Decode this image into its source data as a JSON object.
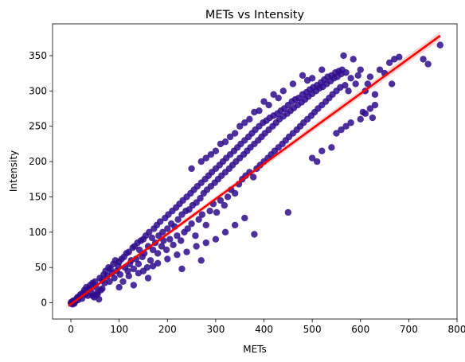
{
  "chart_data": {
    "type": "scatter",
    "title": "METs vs Intensity",
    "xlabel": "METs",
    "ylabel": "Intensity",
    "xlim": [
      -38,
      800
    ],
    "ylim": [
      -23,
      395
    ],
    "xticks": [
      0,
      100,
      200,
      300,
      400,
      500,
      600,
      700,
      800
    ],
    "yticks": [
      0,
      50,
      100,
      150,
      200,
      250,
      300,
      350
    ],
    "grid": false,
    "legend": "none",
    "colors": {
      "points": "#2e0a8c",
      "fit_line": "#ff0000",
      "ci_band": "#ffb3b3"
    },
    "regression": {
      "slope": 0.497,
      "intercept": -2,
      "x_range": [
        -5,
        765
      ]
    },
    "points": [
      [
        0,
        0
      ],
      [
        2,
        0
      ],
      [
        4,
        -1
      ],
      [
        1,
        1
      ],
      [
        6,
        2
      ],
      [
        8,
        1
      ],
      [
        3,
        -2
      ],
      [
        5,
        3
      ],
      [
        7,
        -1
      ],
      [
        10,
        3
      ],
      [
        12,
        6
      ],
      [
        15,
        4
      ],
      [
        14,
        8
      ],
      [
        18,
        9
      ],
      [
        20,
        12
      ],
      [
        23,
        6
      ],
      [
        25,
        14
      ],
      [
        28,
        18
      ],
      [
        30,
        12
      ],
      [
        32,
        22
      ],
      [
        35,
        10
      ],
      [
        38,
        20
      ],
      [
        40,
        25
      ],
      [
        42,
        15
      ],
      [
        45,
        28
      ],
      [
        48,
        8
      ],
      [
        50,
        30
      ],
      [
        52,
        22
      ],
      [
        55,
        12
      ],
      [
        58,
        5
      ],
      [
        60,
        35
      ],
      [
        62,
        18
      ],
      [
        65,
        32
      ],
      [
        68,
        40
      ],
      [
        70,
        28
      ],
      [
        72,
        45
      ],
      [
        75,
        38
      ],
      [
        78,
        50
      ],
      [
        80,
        30
      ],
      [
        82,
        48
      ],
      [
        85,
        42
      ],
      [
        88,
        55
      ],
      [
        90,
        35
      ],
      [
        92,
        60
      ],
      [
        95,
        45
      ],
      [
        98,
        52
      ],
      [
        100,
        58
      ],
      [
        102,
        40
      ],
      [
        105,
        62
      ],
      [
        108,
        30
      ],
      [
        110,
        65
      ],
      [
        112,
        50
      ],
      [
        115,
        70
      ],
      [
        118,
        45
      ],
      [
        120,
        72
      ],
      [
        122,
        55
      ],
      [
        125,
        60
      ],
      [
        128,
        78
      ],
      [
        130,
        48
      ],
      [
        132,
        80
      ],
      [
        135,
        62
      ],
      [
        138,
        85
      ],
      [
        140,
        55
      ],
      [
        142,
        75
      ],
      [
        145,
        88
      ],
      [
        148,
        65
      ],
      [
        150,
        90
      ],
      [
        152,
        70
      ],
      [
        155,
        95
      ],
      [
        158,
        50
      ],
      [
        160,
        80
      ],
      [
        162,
        100
      ],
      [
        165,
        60
      ],
      [
        168,
        92
      ],
      [
        170,
        75
      ],
      [
        172,
        105
      ],
      [
        175,
        85
      ],
      [
        178,
        110
      ],
      [
        180,
        70
      ],
      [
        182,
        95
      ],
      [
        185,
        115
      ],
      [
        188,
        80
      ],
      [
        190,
        100
      ],
      [
        192,
        88
      ],
      [
        195,
        120
      ],
      [
        198,
        75
      ],
      [
        200,
        105
      ],
      [
        202,
        125
      ],
      [
        205,
        90
      ],
      [
        208,
        112
      ],
      [
        210,
        130
      ],
      [
        212,
        82
      ],
      [
        215,
        108
      ],
      [
        218,
        135
      ],
      [
        220,
        95
      ],
      [
        222,
        118
      ],
      [
        225,
        140
      ],
      [
        228,
        88
      ],
      [
        230,
        125
      ],
      [
        232,
        145
      ],
      [
        235,
        100
      ],
      [
        238,
        130
      ],
      [
        240,
        150
      ],
      [
        242,
        105
      ],
      [
        245,
        132
      ],
      [
        248,
        155
      ],
      [
        250,
        112
      ],
      [
        252,
        138
      ],
      [
        255,
        160
      ],
      [
        258,
        95
      ],
      [
        260,
        142
      ],
      [
        262,
        165
      ],
      [
        265,
        118
      ],
      [
        268,
        148
      ],
      [
        270,
        170
      ],
      [
        272,
        125
      ],
      [
        275,
        155
      ],
      [
        278,
        175
      ],
      [
        280,
        110
      ],
      [
        282,
        160
      ],
      [
        285,
        180
      ],
      [
        288,
        130
      ],
      [
        290,
        165
      ],
      [
        292,
        185
      ],
      [
        295,
        140
      ],
      [
        298,
        170
      ],
      [
        300,
        190
      ],
      [
        302,
        128
      ],
      [
        305,
        175
      ],
      [
        308,
        195
      ],
      [
        310,
        145
      ],
      [
        312,
        180
      ],
      [
        315,
        200
      ],
      [
        318,
        138
      ],
      [
        320,
        185
      ],
      [
        322,
        205
      ],
      [
        325,
        150
      ],
      [
        328,
        190
      ],
      [
        330,
        210
      ],
      [
        332,
        160
      ],
      [
        335,
        195
      ],
      [
        338,
        215
      ],
      [
        340,
        155
      ],
      [
        342,
        200
      ],
      [
        345,
        220
      ],
      [
        348,
        168
      ],
      [
        350,
        205
      ],
      [
        352,
        225
      ],
      [
        355,
        175
      ],
      [
        358,
        210
      ],
      [
        360,
        230
      ],
      [
        362,
        180
      ],
      [
        365,
        215
      ],
      [
        368,
        235
      ],
      [
        370,
        185
      ],
      [
        372,
        220
      ],
      [
        375,
        240
      ],
      [
        378,
        178
      ],
      [
        380,
        225
      ],
      [
        382,
        245
      ],
      [
        385,
        190
      ],
      [
        388,
        230
      ],
      [
        390,
        250
      ],
      [
        392,
        195
      ],
      [
        395,
        235
      ],
      [
        398,
        255
      ],
      [
        400,
        200
      ],
      [
        402,
        240
      ],
      [
        405,
        258
      ],
      [
        408,
        205
      ],
      [
        410,
        245
      ],
      [
        412,
        262
      ],
      [
        415,
        210
      ],
      [
        418,
        250
      ],
      [
        420,
        265
      ],
      [
        422,
        215
      ],
      [
        425,
        255
      ],
      [
        428,
        268
      ],
      [
        430,
        220
      ],
      [
        432,
        260
      ],
      [
        435,
        272
      ],
      [
        438,
        225
      ],
      [
        440,
        264
      ],
      [
        442,
        275
      ],
      [
        445,
        230
      ],
      [
        448,
        268
      ],
      [
        450,
        280
      ],
      [
        452,
        235
      ],
      [
        455,
        272
      ],
      [
        458,
        285
      ],
      [
        460,
        240
      ],
      [
        462,
        276
      ],
      [
        465,
        288
      ],
      [
        468,
        245
      ],
      [
        470,
        280
      ],
      [
        472,
        290
      ],
      [
        475,
        250
      ],
      [
        478,
        284
      ],
      [
        480,
        295
      ],
      [
        482,
        255
      ],
      [
        485,
        288
      ],
      [
        488,
        298
      ],
      [
        490,
        260
      ],
      [
        492,
        292
      ],
      [
        495,
        302
      ],
      [
        498,
        265
      ],
      [
        500,
        296
      ],
      [
        502,
        305
      ],
      [
        505,
        270
      ],
      [
        508,
        300
      ],
      [
        510,
        308
      ],
      [
        512,
        275
      ],
      [
        515,
        304
      ],
      [
        518,
        312
      ],
      [
        520,
        280
      ],
      [
        522,
        306
      ],
      [
        525,
        316
      ],
      [
        528,
        285
      ],
      [
        530,
        310
      ],
      [
        532,
        320
      ],
      [
        535,
        290
      ],
      [
        538,
        314
      ],
      [
        540,
        322
      ],
      [
        542,
        295
      ],
      [
        545,
        318
      ],
      [
        548,
        326
      ],
      [
        550,
        300
      ],
      [
        552,
        320
      ],
      [
        555,
        328
      ],
      [
        558,
        305
      ],
      [
        560,
        324
      ],
      [
        562,
        330
      ],
      [
        565,
        350
      ],
      [
        568,
        308
      ],
      [
        570,
        326
      ],
      [
        575,
        300
      ],
      [
        580,
        318
      ],
      [
        585,
        345
      ],
      [
        590,
        310
      ],
      [
        595,
        322
      ],
      [
        600,
        330
      ],
      [
        605,
        270
      ],
      [
        610,
        300
      ],
      [
        615,
        310
      ],
      [
        620,
        320
      ],
      [
        625,
        262
      ],
      [
        630,
        295
      ],
      [
        640,
        330
      ],
      [
        650,
        325
      ],
      [
        660,
        340
      ],
      [
        665,
        310
      ],
      [
        670,
        345
      ],
      [
        680,
        348
      ],
      [
        730,
        345
      ],
      [
        740,
        338
      ],
      [
        765,
        365
      ],
      [
        450,
        128
      ],
      [
        380,
        97
      ],
      [
        270,
        60
      ],
      [
        230,
        48
      ],
      [
        160,
        35
      ],
      [
        130,
        25
      ],
      [
        100,
        22
      ],
      [
        65,
        20
      ],
      [
        55,
        14
      ],
      [
        45,
        10
      ],
      [
        500,
        205
      ],
      [
        510,
        200
      ],
      [
        520,
        215
      ],
      [
        540,
        220
      ],
      [
        550,
        240
      ],
      [
        560,
        245
      ],
      [
        570,
        250
      ],
      [
        580,
        255
      ],
      [
        600,
        260
      ],
      [
        610,
        268
      ],
      [
        620,
        275
      ],
      [
        630,
        280
      ],
      [
        300,
        90
      ],
      [
        320,
        100
      ],
      [
        340,
        110
      ],
      [
        360,
        120
      ],
      [
        280,
        85
      ],
      [
        260,
        80
      ],
      [
        240,
        72
      ],
      [
        220,
        68
      ],
      [
        200,
        62
      ],
      [
        180,
        56
      ],
      [
        170,
        52
      ],
      [
        150,
        45
      ],
      [
        140,
        42
      ],
      [
        120,
        38
      ],
      [
        250,
        190
      ],
      [
        270,
        200
      ],
      [
        290,
        210
      ],
      [
        310,
        225
      ],
      [
        330,
        235
      ],
      [
        350,
        250
      ],
      [
        370,
        260
      ],
      [
        390,
        272
      ],
      [
        410,
        280
      ],
      [
        430,
        290
      ],
      [
        440,
        300
      ],
      [
        460,
        310
      ],
      [
        480,
        322
      ],
      [
        490,
        315
      ],
      [
        500,
        318
      ],
      [
        520,
        330
      ],
      [
        380,
        270
      ],
      [
        400,
        285
      ],
      [
        420,
        295
      ],
      [
        360,
        255
      ],
      [
        340,
        240
      ],
      [
        320,
        228
      ],
      [
        300,
        215
      ],
      [
        280,
        205
      ]
    ]
  }
}
